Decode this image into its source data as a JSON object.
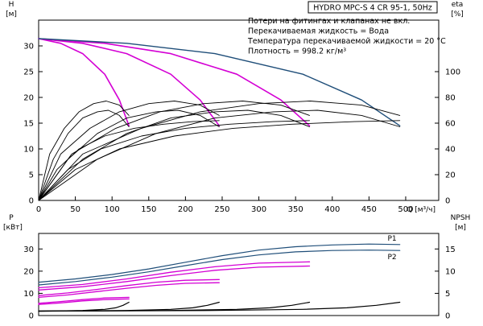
{
  "chart_data": [
    {
      "type": "line",
      "id": "head",
      "title": "HYDRO MPC-S 4 CR 95-1, 50Hz",
      "notes": [
        "Потери на фитингах и клапанах не вкл.",
        "Перекачиваемая жидкость = Вода",
        "Температура перекачиваемой жидкости = 20 °C",
        "Плотность = 998.2 кг/м³"
      ],
      "xlabel": "Q [м³/ч]",
      "ylabel_left": [
        "H",
        "[м]"
      ],
      "ylabel_right": [
        "eta",
        "[%]"
      ],
      "xlim": [
        0,
        545
      ],
      "ylim": [
        0,
        35
      ],
      "y2lim": [
        0,
        140
      ],
      "xticks": [
        0,
        50,
        100,
        150,
        200,
        250,
        300,
        350,
        400,
        450,
        500
      ],
      "yticks": [
        0,
        5,
        10,
        15,
        20,
        25,
        30
      ],
      "y2ticks": [
        0,
        20,
        40,
        60,
        80,
        100
      ],
      "grid": false,
      "series": [
        {
          "color": "#d400d4",
          "points": [
            [
              0,
              31.4
            ],
            [
              30,
              30.5
            ],
            [
              60,
              28.5
            ],
            [
              90,
              24.5
            ],
            [
              110,
              19.5
            ],
            [
              123,
              14.5
            ]
          ]
        },
        {
          "color": "#d400d4",
          "points": [
            [
              0,
              31.4
            ],
            [
              60,
              30.5
            ],
            [
              120,
              28.5
            ],
            [
              180,
              24.5
            ],
            [
              220,
              19.5
            ],
            [
              246,
              14.5
            ]
          ]
        },
        {
          "color": "#d400d4",
          "points": [
            [
              0,
              31.4
            ],
            [
              90,
              30.5
            ],
            [
              180,
              28.5
            ],
            [
              270,
              24.5
            ],
            [
              330,
              19.5
            ],
            [
              369,
              14.5
            ]
          ]
        },
        {
          "color": "#1f4e79",
          "points": [
            [
              0,
              31.4
            ],
            [
              120,
              30.5
            ],
            [
              240,
              28.5
            ],
            [
              360,
              24.5
            ],
            [
              440,
              19.5
            ],
            [
              492,
              14.5
            ]
          ]
        },
        {
          "color": "#000000",
          "points": [
            [
              0,
              0
            ],
            [
              20,
              8
            ],
            [
              40,
              13
            ],
            [
              60,
              16
            ],
            [
              80,
              17.2
            ],
            [
              95,
              17.5
            ],
            [
              110,
              16.5
            ],
            [
              123,
              14.3
            ]
          ]
        },
        {
          "color": "#000000",
          "points": [
            [
              0,
              0
            ],
            [
              40,
              8
            ],
            [
              80,
              13
            ],
            [
              120,
              16
            ],
            [
              160,
              17.2
            ],
            [
              190,
              17.5
            ],
            [
              220,
              16.5
            ],
            [
              246,
              14.3
            ]
          ]
        },
        {
          "color": "#000000",
          "points": [
            [
              0,
              0
            ],
            [
              60,
              8
            ],
            [
              120,
              13
            ],
            [
              180,
              16
            ],
            [
              240,
              17.2
            ],
            [
              285,
              17.5
            ],
            [
              330,
              16.5
            ],
            [
              369,
              14.3
            ]
          ]
        },
        {
          "color": "#000000",
          "points": [
            [
              0,
              0
            ],
            [
              80,
              8
            ],
            [
              160,
              13
            ],
            [
              240,
              16
            ],
            [
              320,
              17.2
            ],
            [
              380,
              17.5
            ],
            [
              440,
              16.5
            ],
            [
              492,
              14.3
            ]
          ]
        },
        {
          "color": "#000000",
          "points": [
            [
              0,
              0
            ],
            [
              15,
              9
            ],
            [
              35,
              14
            ],
            [
              55,
              17.2
            ],
            [
              75,
              18.8
            ],
            [
              92,
              19.3
            ],
            [
              110,
              18.5
            ],
            [
              123,
              16.5
            ]
          ]
        },
        {
          "color": "#000000",
          "points": [
            [
              0,
              0
            ],
            [
              30,
              9
            ],
            [
              70,
              14
            ],
            [
              110,
              17.2
            ],
            [
              150,
              18.8
            ],
            [
              185,
              19.3
            ],
            [
              220,
              18.5
            ],
            [
              246,
              16.5
            ]
          ]
        },
        {
          "color": "#000000",
          "points": [
            [
              0,
              0
            ],
            [
              45,
              9
            ],
            [
              105,
              14
            ],
            [
              165,
              17.2
            ],
            [
              225,
              18.8
            ],
            [
              278,
              19.3
            ],
            [
              330,
              18.5
            ],
            [
              369,
              16.5
            ]
          ]
        },
        {
          "color": "#000000",
          "points": [
            [
              0,
              0
            ],
            [
              60,
              9
            ],
            [
              140,
              14
            ],
            [
              220,
              17.2
            ],
            [
              300,
              18.8
            ],
            [
              370,
              19.3
            ],
            [
              440,
              18.5
            ],
            [
              492,
              16.5
            ]
          ]
        },
        {
          "color": "#000000",
          "points": [
            [
              0,
              0
            ],
            [
              25,
              6
            ],
            [
              55,
              10
            ],
            [
              90,
              12.5
            ],
            [
              130,
              14
            ],
            [
              170,
              14.8
            ],
            [
              210,
              15.3
            ],
            [
              246,
              15.5
            ]
          ]
        },
        {
          "color": "#000000",
          "points": [
            [
              0,
              0
            ],
            [
              40,
              6
            ],
            [
              85,
              10
            ],
            [
              140,
              12.5
            ],
            [
              200,
              14
            ],
            [
              260,
              14.8
            ],
            [
              320,
              15.3
            ],
            [
              369,
              15.5
            ]
          ]
        },
        {
          "color": "#000000",
          "points": [
            [
              0,
              0
            ],
            [
              50,
              6
            ],
            [
              110,
              10
            ],
            [
              185,
              12.5
            ],
            [
              265,
              14
            ],
            [
              345,
              14.8
            ],
            [
              430,
              15.3
            ],
            [
              492,
              15.5
            ]
          ]
        }
      ]
    },
    {
      "type": "line",
      "id": "power",
      "ylabel_left": [
        "P",
        "[кВт]"
      ],
      "ylabel_right": [
        "NPSH",
        "[м]"
      ],
      "xlim": [
        0,
        545
      ],
      "ylim": [
        0,
        37
      ],
      "y2lim": [
        0,
        18.5
      ],
      "yticks": [
        0,
        10,
        20,
        30
      ],
      "y2ticks": [
        0,
        5,
        10,
        15
      ],
      "grid": false,
      "series": [
        {
          "name": "P1",
          "color": "#1f4e79",
          "points": [
            [
              0,
              15
            ],
            [
              50,
              16.5
            ],
            [
              100,
              18.5
            ],
            [
              150,
              21
            ],
            [
              200,
              24
            ],
            [
              250,
              27
            ],
            [
              300,
              29.5
            ],
            [
              350,
              31
            ],
            [
              400,
              31.8
            ],
            [
              450,
              32.2
            ],
            [
              492,
              32
            ]
          ]
        },
        {
          "name": "P2",
          "color": "#1f4e79",
          "points": [
            [
              0,
              13.8
            ],
            [
              50,
              15.3
            ],
            [
              100,
              17.3
            ],
            [
              150,
              19.7
            ],
            [
              200,
              22.5
            ],
            [
              250,
              25.2
            ],
            [
              300,
              27.3
            ],
            [
              350,
              28.7
            ],
            [
              400,
              29.3
            ],
            [
              450,
              29.5
            ],
            [
              492,
              29.3
            ]
          ]
        },
        {
          "color": "#d400d4",
          "points": [
            [
              0,
              12.5
            ],
            [
              60,
              14
            ],
            [
              120,
              16.5
            ],
            [
              180,
              19.5
            ],
            [
              240,
              22
            ],
            [
              300,
              23.6
            ],
            [
              369,
              24.2
            ]
          ]
        },
        {
          "color": "#d400d4",
          "points": [
            [
              0,
              11.5
            ],
            [
              60,
              13
            ],
            [
              120,
              15.3
            ],
            [
              180,
              18
            ],
            [
              240,
              20.4
            ],
            [
              300,
              21.8
            ],
            [
              369,
              22.3
            ]
          ]
        },
        {
          "color": "#d400d4",
          "points": [
            [
              0,
              9
            ],
            [
              40,
              10.2
            ],
            [
              80,
              11.8
            ],
            [
              120,
              13.5
            ],
            [
              160,
              15
            ],
            [
              200,
              15.9
            ],
            [
              246,
              16.2
            ]
          ]
        },
        {
          "color": "#d400d4",
          "points": [
            [
              0,
              8.2
            ],
            [
              40,
              9.3
            ],
            [
              80,
              10.8
            ],
            [
              120,
              12.3
            ],
            [
              160,
              13.6
            ],
            [
              200,
              14.5
            ],
            [
              246,
              14.8
            ]
          ]
        },
        {
          "color": "#d400d4",
          "points": [
            [
              0,
              5.5
            ],
            [
              30,
              6.3
            ],
            [
              60,
              7.2
            ],
            [
              90,
              7.9
            ],
            [
              123,
              8.2
            ]
          ]
        },
        {
          "color": "#d400d4",
          "points": [
            [
              0,
              5
            ],
            [
              30,
              5.7
            ],
            [
              60,
              6.6
            ],
            [
              90,
              7.2
            ],
            [
              123,
              7.5
            ]
          ]
        },
        {
          "color": "#000000",
          "points": [
            [
              0,
              2
            ],
            [
              30,
              2.1
            ],
            [
              60,
              2.3
            ],
            [
              90,
              2.8
            ],
            [
              105,
              3.5
            ],
            [
              115,
              4.6
            ],
            [
              123,
              6
            ]
          ]
        },
        {
          "color": "#000000",
          "points": [
            [
              0,
              2
            ],
            [
              60,
              2.1
            ],
            [
              120,
              2.3
            ],
            [
              180,
              2.8
            ],
            [
              210,
              3.5
            ],
            [
              230,
              4.6
            ],
            [
              246,
              6
            ]
          ]
        },
        {
          "color": "#000000",
          "points": [
            [
              0,
              2
            ],
            [
              90,
              2.1
            ],
            [
              180,
              2.3
            ],
            [
              270,
              2.8
            ],
            [
              315,
              3.5
            ],
            [
              345,
              4.6
            ],
            [
              369,
              6
            ]
          ]
        },
        {
          "color": "#000000",
          "points": [
            [
              0,
              2
            ],
            [
              120,
              2.1
            ],
            [
              240,
              2.3
            ],
            [
              360,
              2.8
            ],
            [
              420,
              3.5
            ],
            [
              460,
              4.6
            ],
            [
              492,
              6
            ]
          ]
        }
      ]
    }
  ]
}
